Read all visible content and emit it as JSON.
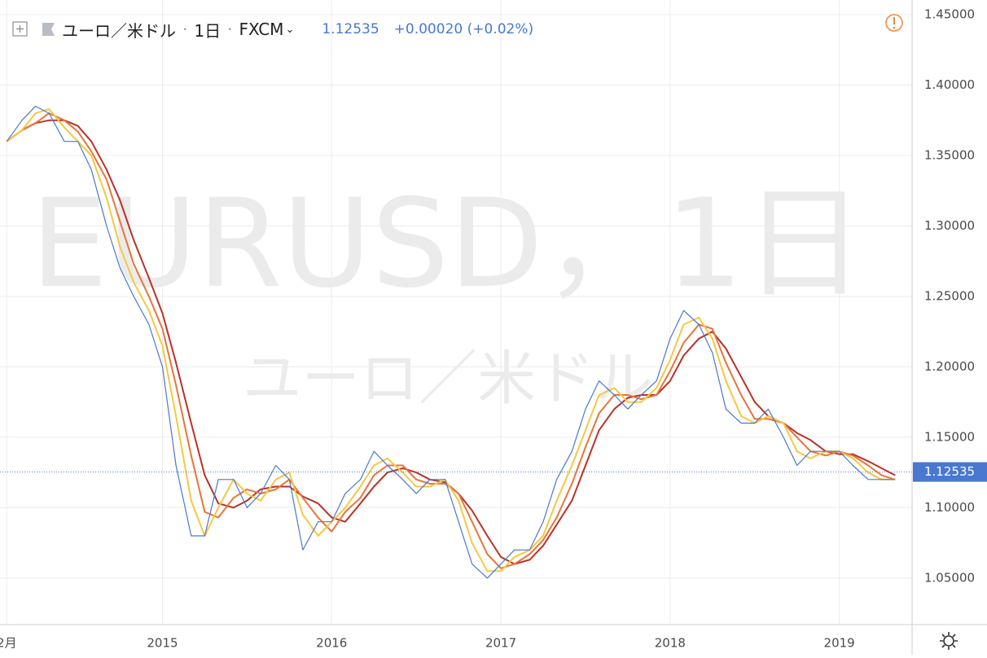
{
  "header": {
    "symbol": "ユーロ／米ドル",
    "interval": "1日",
    "source": "FXCM",
    "change": "+0.00020 (+0.02%)"
  },
  "watermark": {
    "title": "EURUSD，1日",
    "subtitle": "ユーロ／米ドル"
  },
  "chart_data": {
    "type": "line",
    "last_price": 1.12535,
    "x": [
      2014.08,
      2014.17,
      2014.25,
      2014.33,
      2014.42,
      2014.5,
      2014.58,
      2014.67,
      2014.75,
      2014.83,
      2014.92,
      2015.0,
      2015.08,
      2015.17,
      2015.25,
      2015.33,
      2015.42,
      2015.5,
      2015.58,
      2015.67,
      2015.75,
      2015.83,
      2015.92,
      2016.0,
      2016.08,
      2016.17,
      2016.25,
      2016.33,
      2016.42,
      2016.5,
      2016.58,
      2016.67,
      2016.75,
      2016.83,
      2016.92,
      2017.0,
      2017.08,
      2017.17,
      2017.25,
      2017.33,
      2017.42,
      2017.5,
      2017.58,
      2017.67,
      2017.75,
      2017.83,
      2017.92,
      2018.0,
      2018.08,
      2018.17,
      2018.25,
      2018.33,
      2018.42,
      2018.5,
      2018.58,
      2018.67,
      2018.75,
      2018.83,
      2018.92,
      2019.0,
      2019.08,
      2019.17,
      2019.25,
      2019.33
    ],
    "series": [
      {
        "color": "#b8322a",
        "values": [
          1.36,
          1.368,
          1.373,
          1.375,
          1.375,
          1.371,
          1.36,
          1.34,
          1.318,
          1.29,
          1.263,
          1.238,
          1.203,
          1.16,
          1.123,
          1.103,
          1.1,
          1.105,
          1.113,
          1.115,
          1.115,
          1.108,
          1.103,
          1.093,
          1.09,
          1.103,
          1.115,
          1.125,
          1.128,
          1.125,
          1.12,
          1.118,
          1.11,
          1.098,
          1.08,
          1.065,
          1.06,
          1.063,
          1.073,
          1.088,
          1.105,
          1.13,
          1.155,
          1.17,
          1.178,
          1.18,
          1.18,
          1.19,
          1.208,
          1.22,
          1.225,
          1.213,
          1.193,
          1.175,
          1.165,
          1.16,
          1.153,
          1.148,
          1.14,
          1.138,
          1.138,
          1.133,
          1.128,
          1.123
        ]
      },
      {
        "color": "#e8743a",
        "values": [
          1.36,
          1.368,
          1.373,
          1.38,
          1.375,
          1.367,
          1.353,
          1.333,
          1.303,
          1.273,
          1.25,
          1.227,
          1.187,
          1.137,
          1.097,
          1.093,
          1.107,
          1.113,
          1.11,
          1.113,
          1.12,
          1.107,
          1.093,
          1.083,
          1.097,
          1.107,
          1.123,
          1.13,
          1.13,
          1.12,
          1.117,
          1.117,
          1.11,
          1.09,
          1.067,
          1.057,
          1.06,
          1.067,
          1.077,
          1.093,
          1.117,
          1.143,
          1.167,
          1.18,
          1.18,
          1.177,
          1.18,
          1.197,
          1.217,
          1.23,
          1.227,
          1.203,
          1.18,
          1.163,
          1.163,
          1.16,
          1.15,
          1.14,
          1.137,
          1.14,
          1.137,
          1.13,
          1.123,
          1.12
        ]
      },
      {
        "color": "#f5c842",
        "values": [
          1.36,
          1.368,
          1.38,
          1.383,
          1.37,
          1.36,
          1.35,
          1.32,
          1.285,
          1.26,
          1.24,
          1.215,
          1.165,
          1.105,
          1.08,
          1.1,
          1.12,
          1.11,
          1.105,
          1.12,
          1.125,
          1.095,
          1.08,
          1.09,
          1.1,
          1.115,
          1.13,
          1.135,
          1.125,
          1.115,
          1.115,
          1.12,
          1.105,
          1.075,
          1.055,
          1.055,
          1.065,
          1.07,
          1.08,
          1.105,
          1.13,
          1.155,
          1.18,
          1.185,
          1.175,
          1.175,
          1.185,
          1.205,
          1.23,
          1.235,
          1.22,
          1.19,
          1.165,
          1.16,
          1.165,
          1.16,
          1.14,
          1.135,
          1.14,
          1.14,
          1.135,
          1.125,
          1.12,
          1.12
        ]
      },
      {
        "color": "#4a78d0",
        "values": [
          1.36,
          1.375,
          1.385,
          1.38,
          1.36,
          1.36,
          1.34,
          1.3,
          1.27,
          1.25,
          1.23,
          1.2,
          1.13,
          1.08,
          1.08,
          1.12,
          1.12,
          1.1,
          1.11,
          1.13,
          1.12,
          1.07,
          1.09,
          1.09,
          1.11,
          1.12,
          1.14,
          1.13,
          1.12,
          1.11,
          1.12,
          1.12,
          1.09,
          1.06,
          1.05,
          1.06,
          1.07,
          1.07,
          1.09,
          1.12,
          1.14,
          1.17,
          1.19,
          1.18,
          1.17,
          1.18,
          1.19,
          1.22,
          1.24,
          1.23,
          1.21,
          1.17,
          1.16,
          1.16,
          1.17,
          1.15,
          1.13,
          1.14,
          1.14,
          1.14,
          1.13,
          1.12,
          1.12,
          1.12
        ]
      }
    ],
    "xlim": [
      2014.04,
      2019.43
    ],
    "xticks": [
      {
        "value": 2014.08,
        "label": "2月"
      },
      2015,
      2016,
      2017,
      2018,
      2019
    ],
    "ylim": [
      1.017,
      1.4604
    ],
    "yticks": [
      {
        "value": 1.05,
        "label": "1.05000"
      },
      {
        "value": 1.1,
        "label": "1.10000"
      },
      {
        "value": 1.15,
        "label": "1.15000"
      },
      {
        "value": 1.2,
        "label": "1.20000"
      },
      {
        "value": 1.25,
        "label": "1.25000"
      },
      {
        "value": 1.3,
        "label": "1.30000"
      },
      {
        "value": 1.35,
        "label": "1.35000"
      },
      {
        "value": 1.4,
        "label": "1.40000"
      },
      {
        "value": 1.45,
        "label": "1.45000"
      }
    ],
    "grid": true
  }
}
